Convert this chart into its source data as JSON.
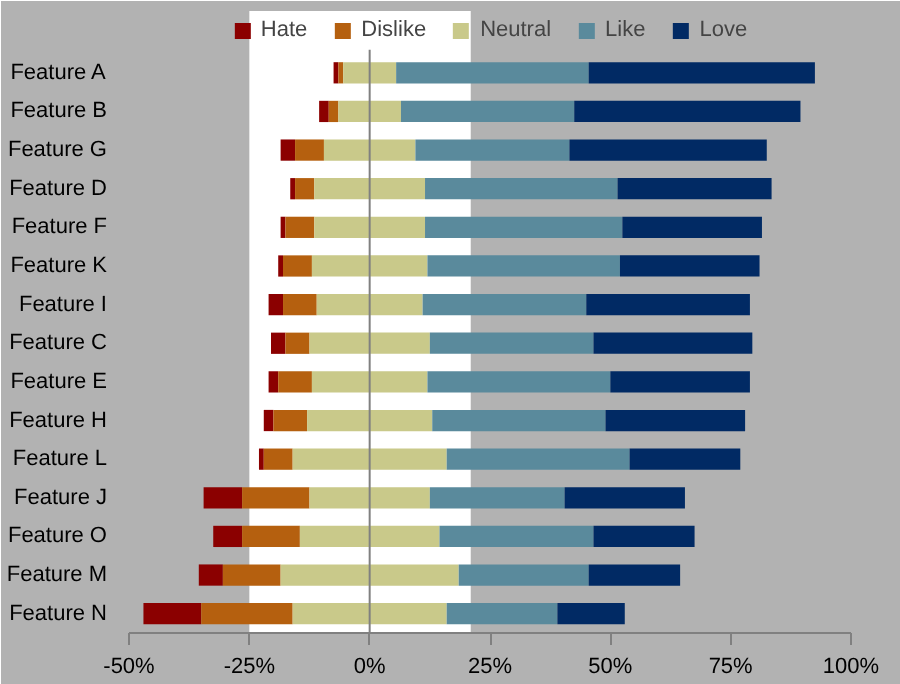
{
  "chart_data": {
    "type": "bar",
    "orientation": "horizontal",
    "categories": [
      "Feature A",
      "Feature B",
      "Feature G",
      "Feature D",
      "Feature F",
      "Feature K",
      "Feature I",
      "Feature C",
      "Feature E",
      "Feature H",
      "Feature L",
      "Feature J",
      "Feature O",
      "Feature M",
      "Feature N"
    ],
    "series": [
      {
        "name": "Hate",
        "color": "#8b0000",
        "values": [
          1,
          2,
          3,
          1,
          1,
          1,
          3,
          3,
          2,
          2,
          1,
          8,
          6,
          5,
          12
        ],
        "base": [
          -7.5,
          -10.5,
          -18.5,
          -16.5,
          -18.5,
          -19,
          -21,
          -20.5,
          -21,
          -22,
          -23,
          -34.5,
          -32.5,
          -35.5,
          -47
        ]
      },
      {
        "name": "Dislike",
        "color": "#b5600f",
        "values": [
          1,
          2,
          6,
          4,
          6,
          6,
          7,
          5,
          7,
          7,
          6,
          14,
          12,
          12,
          19
        ],
        "base": [
          -6.5,
          -8.5,
          -15.5,
          -15.5,
          -17.5,
          -18,
          -18,
          -17.5,
          -19,
          -20,
          -22,
          -26.5,
          -26.5,
          -30.5,
          -35
        ]
      },
      {
        "name": "Neutral",
        "color": "#c9c98a",
        "values": [
          11,
          13,
          19,
          23,
          23,
          24,
          22,
          25,
          24,
          26,
          32,
          25,
          29,
          37,
          32
        ],
        "base": [
          -5.5,
          -6.5,
          -9.5,
          -11.5,
          -11.5,
          -12,
          -11,
          -12.5,
          -12,
          -13,
          -16,
          -12.5,
          -14.5,
          -18.5,
          -16
        ]
      },
      {
        "name": "Like",
        "color": "#5a8a9c",
        "values": [
          40,
          36,
          32,
          40,
          41,
          40,
          34,
          34,
          38,
          36,
          38,
          28,
          32,
          27,
          23
        ],
        "base": [
          5.5,
          6.5,
          9.5,
          11.5,
          11.5,
          12,
          11,
          12.5,
          12,
          13,
          16,
          12.5,
          14.5,
          18.5,
          16
        ]
      },
      {
        "name": "Love",
        "color": "#012a64",
        "values": [
          47,
          47,
          41,
          32,
          29,
          29,
          34,
          33,
          29,
          29,
          23,
          25,
          21,
          19,
          14
        ],
        "base": [
          45.5,
          42.5,
          41.5,
          51.5,
          52.5,
          52,
          45,
          46.5,
          50,
          49,
          54,
          40.5,
          46.5,
          45.5,
          39
        ]
      }
    ],
    "xlim": [
      -50,
      100
    ],
    "xticks": [
      {
        "value": -50,
        "label": "-50%"
      },
      {
        "value": -25,
        "label": "-25%"
      },
      {
        "value": 0,
        "label": "0%"
      },
      {
        "value": 25,
        "label": "25%"
      },
      {
        "value": 50,
        "label": "50%"
      },
      {
        "value": 75,
        "label": "75%"
      },
      {
        "value": 100,
        "label": "100%"
      }
    ],
    "ref_lines": [
      {
        "axis": "x",
        "value": 0,
        "color": "#808080"
      }
    ],
    "bands": [
      {
        "axis": "x",
        "from": -25,
        "to": 21,
        "color": "#ffffff"
      }
    ],
    "grid": false,
    "legend": "top"
  }
}
